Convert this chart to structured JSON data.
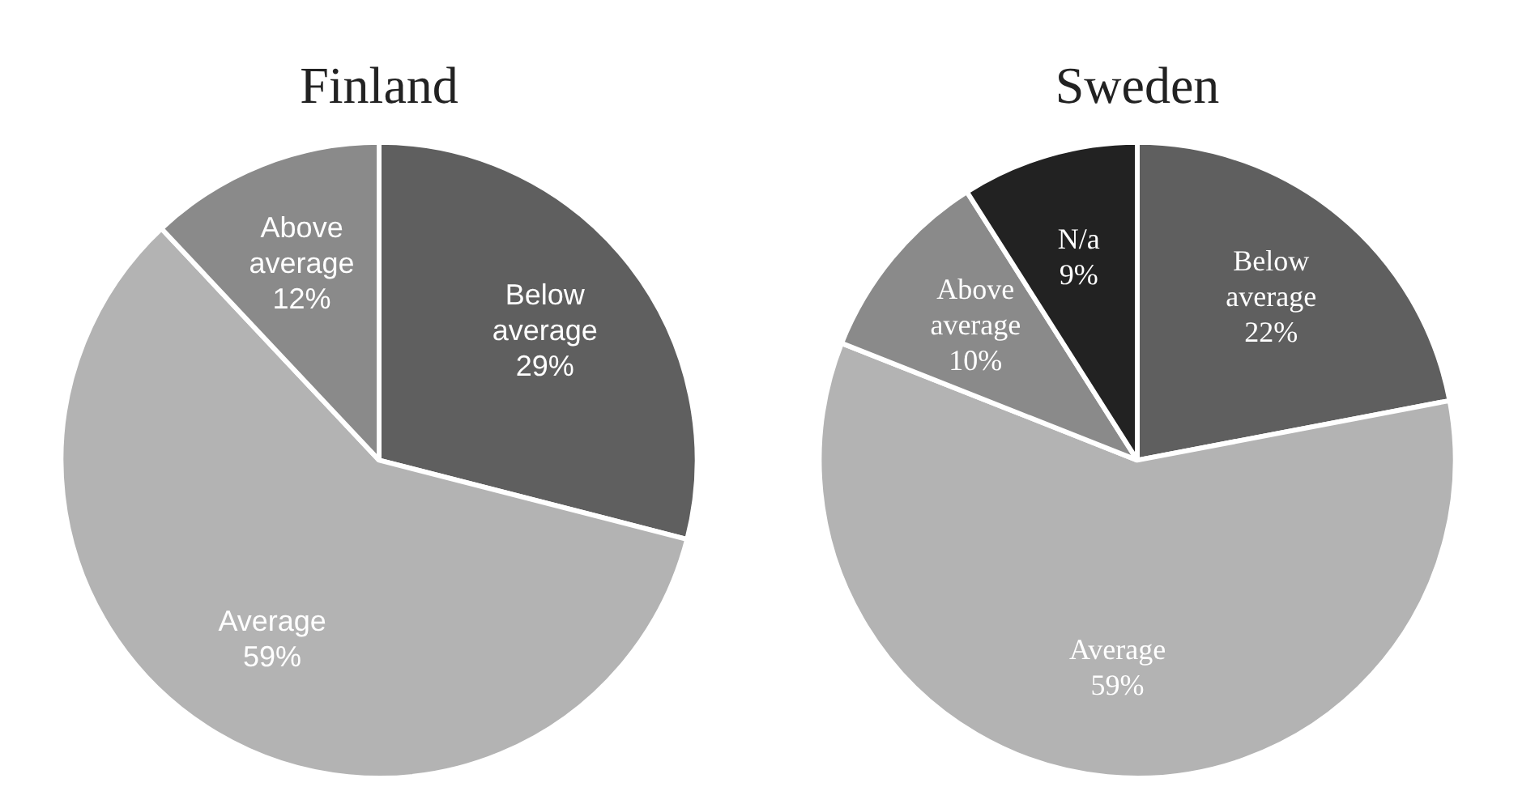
{
  "chart_data": [
    {
      "type": "pie",
      "title": "Finland",
      "categories": [
        "Below average",
        "Average",
        "Above average"
      ],
      "values": [
        29,
        59,
        12
      ],
      "value_labels": [
        "29%",
        "59%",
        "12%"
      ],
      "colors": [
        "#5f5f5f",
        "#b3b3b3",
        "#8a8a8a"
      ]
    },
    {
      "type": "pie",
      "title": "Sweden",
      "categories": [
        "Below average",
        "Average",
        "Above average",
        "N/a"
      ],
      "values": [
        22,
        59,
        10,
        9
      ],
      "value_labels": [
        "22%",
        "59%",
        "10%",
        "9%"
      ],
      "colors": [
        "#5f5f5f",
        "#b3b3b3",
        "#8a8a8a",
        "#222222"
      ]
    }
  ]
}
